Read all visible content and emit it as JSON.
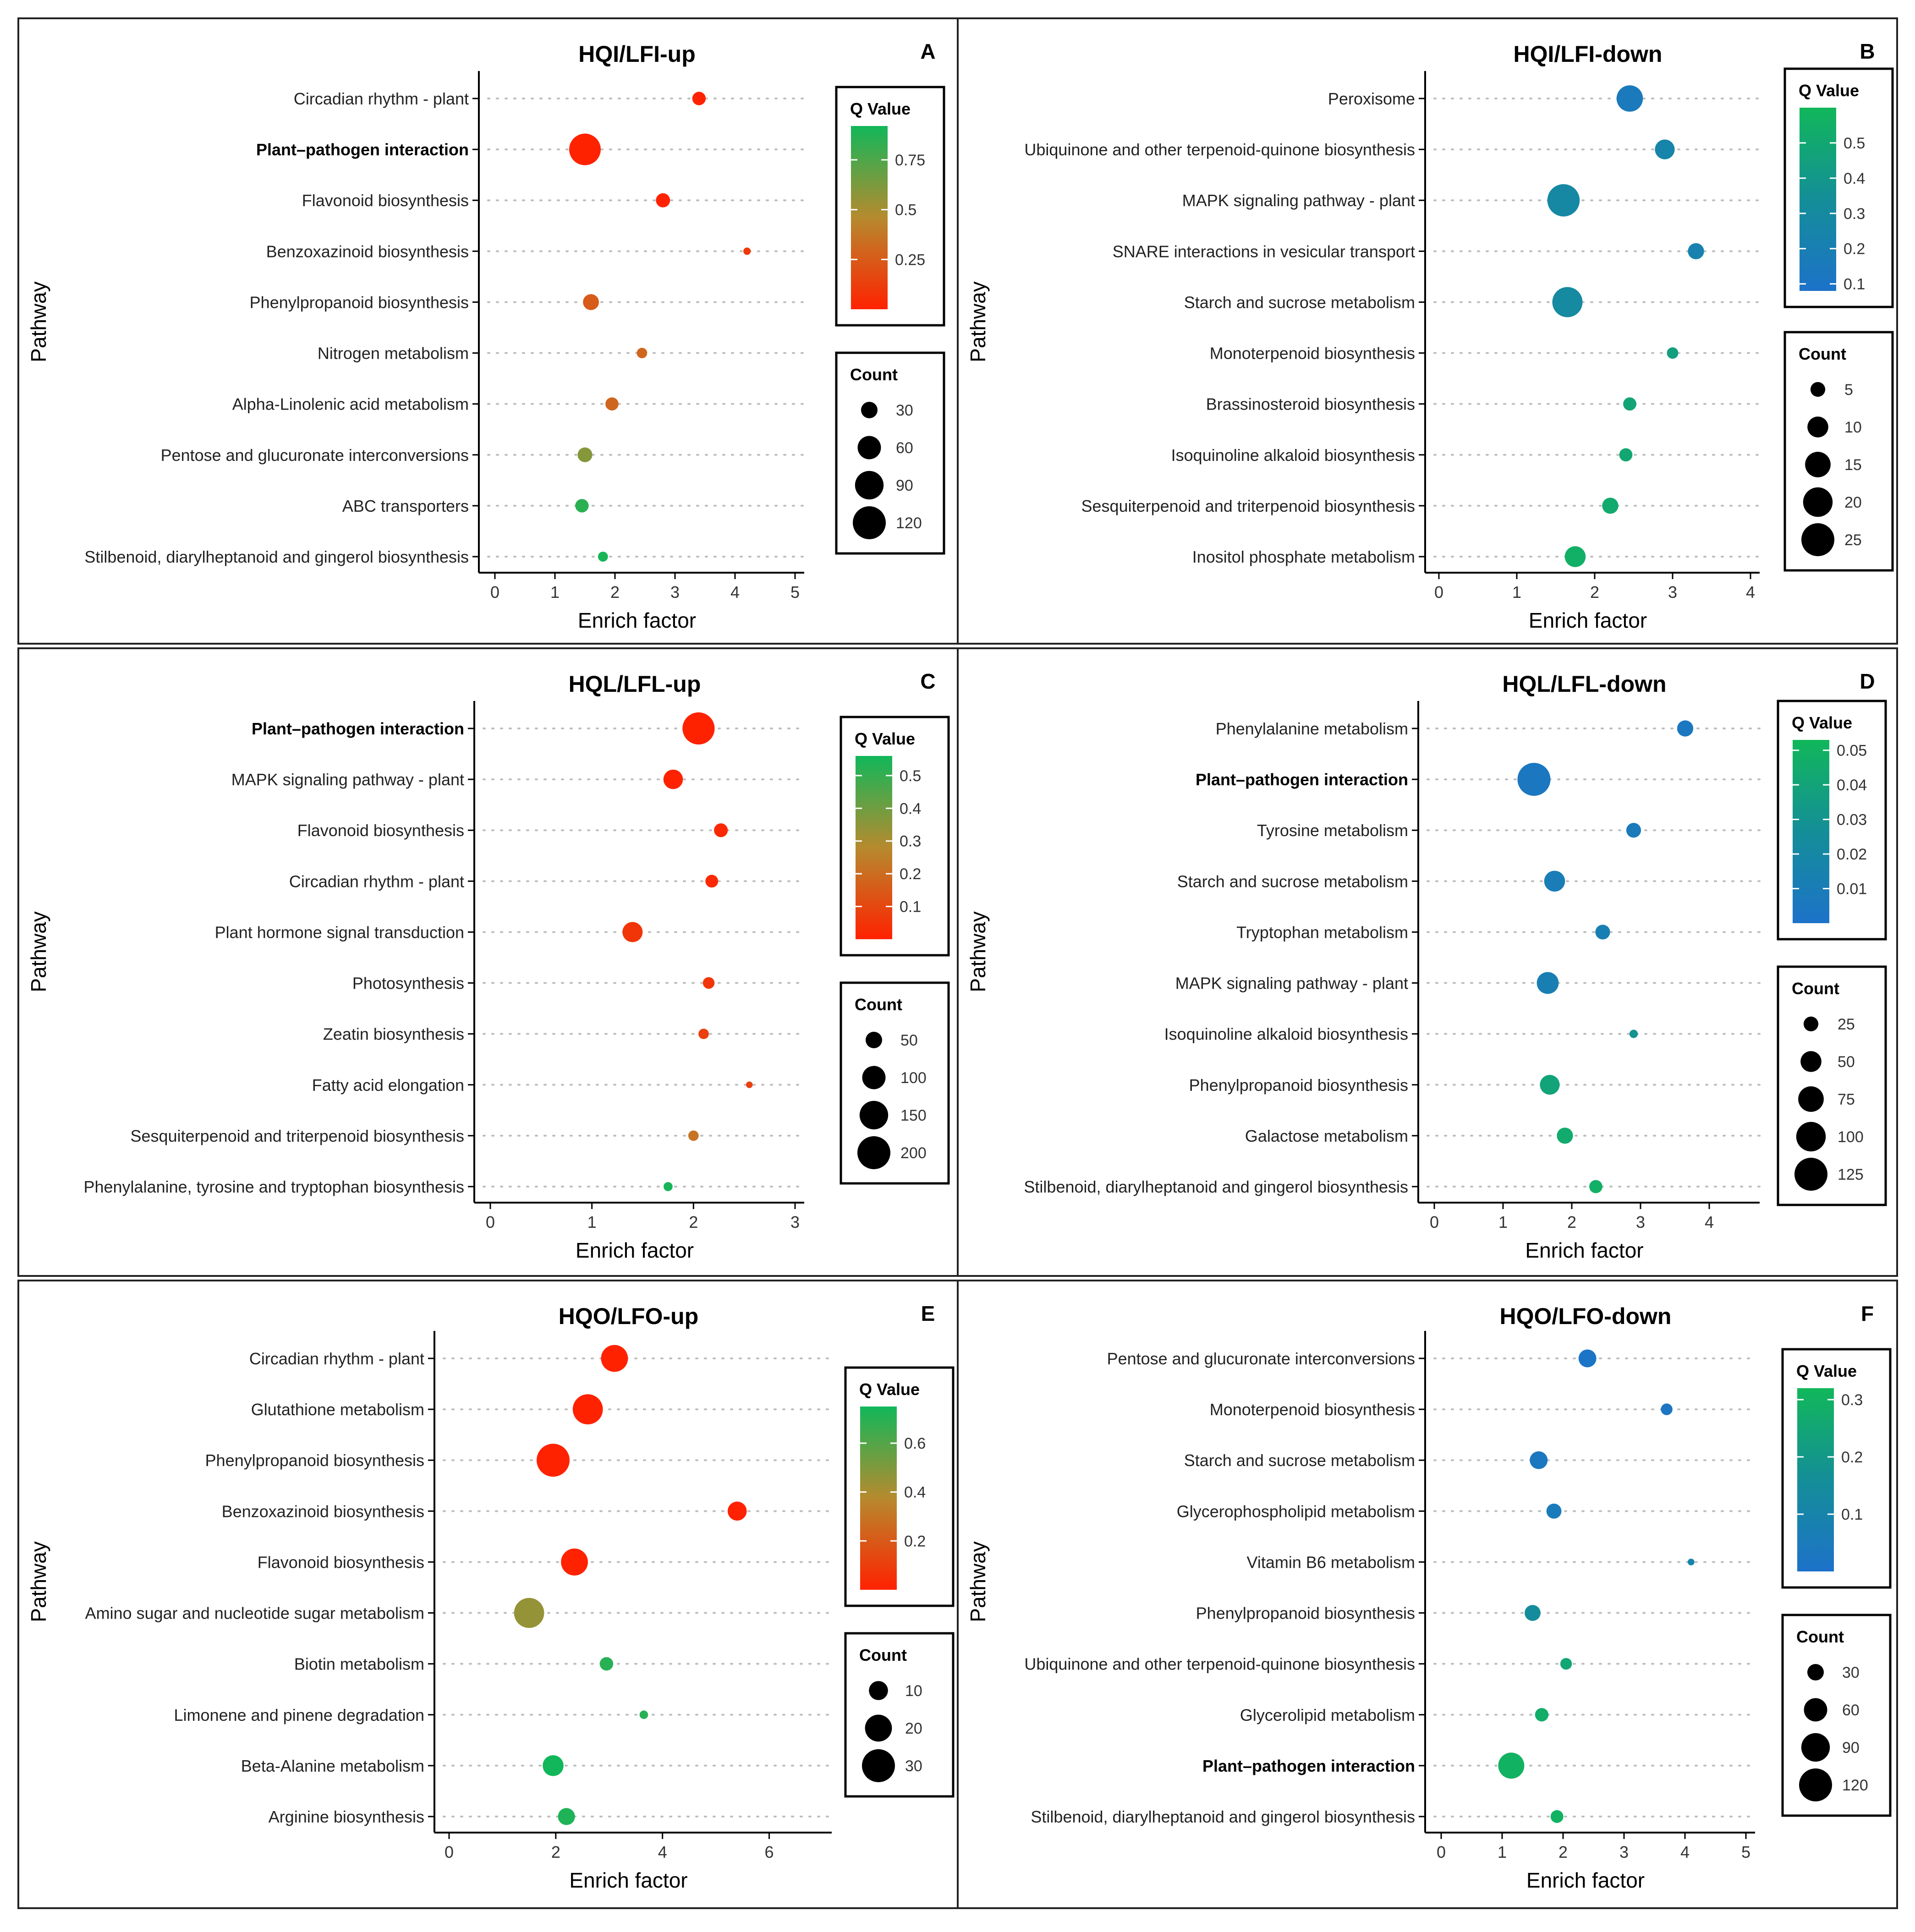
{
  "chart_data": [
    {
      "type": "scatter",
      "panel_letter": "A",
      "title": "HQI/LFI-up",
      "xlabel": "Enrich factor",
      "ylabel": "Pathway",
      "xlim": [
        0,
        5
      ],
      "xticks": [
        0,
        1,
        2,
        3,
        4,
        5
      ],
      "categories": [
        "Circadian rhythm - plant",
        "Plant–pathogen interaction",
        "Flavonoid biosynthesis",
        "Benzoxazinoid biosynthesis",
        "Phenylpropanoid biosynthesis",
        "Nitrogen metabolism",
        "Alpha-Linolenic acid metabolism",
        "Pentose and glucuronate interconversions",
        "ABC transporters",
        "Stilbenoid, diarylheptanoid and gingerol biosynthesis"
      ],
      "bold_categories": [
        "Plant–pathogen interaction"
      ],
      "x": [
        3.4,
        1.5,
        2.8,
        4.2,
        1.6,
        2.45,
        1.95,
        1.5,
        1.45,
        1.8
      ],
      "count": [
        20,
        110,
        22,
        6,
        28,
        12,
        19,
        24,
        20,
        11
      ],
      "qvalue": [
        0.0,
        0.0,
        0.0,
        0.1,
        0.25,
        0.3,
        0.3,
        0.6,
        0.85,
        0.9
      ],
      "qvalue_legend": {
        "title": "Q Value",
        "ticks": [
          0.75,
          0.5,
          0.25
        ],
        "min": 0.0,
        "max": 0.92,
        "color_low": "#ff2200",
        "color_mid": "#b68a2e",
        "color_high": "#11b75a"
      },
      "count_legend": {
        "title": "Count",
        "ticks": [
          30,
          60,
          90,
          120
        ],
        "max": 120
      }
    },
    {
      "type": "scatter",
      "panel_letter": "B",
      "title": "HQI/LFI-down",
      "xlabel": "Enrich factor",
      "ylabel": "Pathway",
      "xlim": [
        0,
        4
      ],
      "xticks": [
        0,
        1,
        2,
        3,
        4
      ],
      "categories": [
        "Peroxisome",
        "Ubiquinone and other terpenoid-quinone biosynthesis",
        "MAPK signaling pathway - plant",
        "SNARE interactions in vesicular transport",
        "Starch and sucrose metabolism",
        "Monoterpenoid biosynthesis",
        "Brassinosteroid biosynthesis",
        "Isoquinoline alkaloid biosynthesis",
        "Sesquiterpenoid and triterpenoid biosynthesis",
        "Inositol phosphate metabolism"
      ],
      "bold_categories": [],
      "x": [
        2.45,
        2.9,
        1.6,
        3.3,
        1.65,
        3.0,
        2.45,
        2.4,
        2.2,
        1.75
      ],
      "count": [
        16,
        9,
        24,
        6,
        21,
        3,
        4,
        4,
        6,
        10
      ],
      "qvalue": [
        0.15,
        0.25,
        0.28,
        0.22,
        0.3,
        0.45,
        0.48,
        0.5,
        0.52,
        0.55
      ],
      "qvalue_legend": {
        "title": "Q Value",
        "ticks": [
          0.5,
          0.4,
          0.3,
          0.2,
          0.1
        ],
        "min": 0.08,
        "max": 0.6,
        "color_low": "#1d72c9",
        "color_mid": "#148e98",
        "color_high": "#11b75a"
      },
      "count_legend": {
        "title": "Count",
        "ticks": [
          5,
          10,
          15,
          20,
          25
        ],
        "max": 25
      }
    },
    {
      "type": "scatter",
      "panel_letter": "C",
      "title": "HQL/LFL-up",
      "xlabel": "Enrich factor",
      "ylabel": "Pathway",
      "xlim": [
        0,
        3
      ],
      "xticks": [
        0,
        1,
        2,
        3
      ],
      "categories": [
        "Plant–pathogen interaction",
        "MAPK signaling pathway - plant",
        "Flavonoid biosynthesis",
        "Circadian rhythm - plant",
        "Plant hormone signal transduction",
        "Photosynthesis",
        "Zeatin biosynthesis",
        "Fatty acid elongation",
        "Sesquiterpenoid and triterpenoid biosynthesis",
        "Phenylalanine, tyrosine and tryptophan biosynthesis"
      ],
      "bold_categories": [
        "Plant–pathogen interaction"
      ],
      "x": [
        2.05,
        1.8,
        2.27,
        2.18,
        1.4,
        2.15,
        2.1,
        2.55,
        2.0,
        1.75
      ],
      "count": [
        190,
        70,
        35,
        30,
        75,
        25,
        20,
        8,
        20,
        15
      ],
      "qvalue": [
        0.0,
        0.0,
        0.02,
        0.02,
        0.05,
        0.05,
        0.08,
        0.08,
        0.22,
        0.55
      ],
      "qvalue_legend": {
        "title": "Q Value",
        "ticks": [
          0.5,
          0.4,
          0.3,
          0.2,
          0.1
        ],
        "min": 0.0,
        "max": 0.56,
        "color_low": "#ff2200",
        "color_mid": "#b68a2e",
        "color_high": "#11b75a"
      },
      "count_legend": {
        "title": "Count",
        "ticks": [
          50,
          100,
          150,
          200
        ],
        "max": 200
      }
    },
    {
      "type": "scatter",
      "panel_letter": "D",
      "title": "HQL/LFL-down",
      "xlabel": "Enrich factor",
      "ylabel": "Pathway",
      "xlim": [
        0,
        4.6
      ],
      "xticks": [
        0,
        1,
        2,
        3,
        4
      ],
      "categories": [
        "Phenylalanine metabolism",
        "Plant–pathogen interaction",
        "Tyrosine metabolism",
        "Starch and sucrose metabolism",
        "Tryptophan metabolism",
        "MAPK signaling pathway - plant",
        "Isoquinoline alkaloid biosynthesis",
        "Phenylpropanoid biosynthesis",
        "Galactose metabolism",
        "Stilbenoid, diarylheptanoid and gingerol biosynthesis"
      ],
      "bold_categories": [
        "Plant–pathogen interaction"
      ],
      "x": [
        3.65,
        1.45,
        2.9,
        1.75,
        2.45,
        1.65,
        2.9,
        1.68,
        1.9,
        2.35
      ],
      "count": [
        30,
        125,
        25,
        50,
        25,
        55,
        8,
        45,
        30,
        20
      ],
      "qvalue": [
        0.005,
        0.005,
        0.008,
        0.01,
        0.012,
        0.012,
        0.03,
        0.04,
        0.045,
        0.048
      ],
      "qvalue_legend": {
        "title": "Q Value",
        "ticks": [
          0.05,
          0.04,
          0.03,
          0.02,
          0.01
        ],
        "min": 0.0,
        "max": 0.053,
        "color_low": "#1d72c9",
        "color_mid": "#148e98",
        "color_high": "#11b75a"
      },
      "count_legend": {
        "title": "Count",
        "ticks": [
          25,
          50,
          75,
          100,
          125
        ],
        "max": 125
      }
    },
    {
      "type": "scatter",
      "panel_letter": "E",
      "title": "HQO/LFO-up",
      "xlabel": "Enrich factor",
      "ylabel": "Pathway",
      "xlim": [
        0,
        7
      ],
      "xticks": [
        0,
        2,
        4,
        6
      ],
      "categories": [
        "Circadian rhythm - plant",
        "Glutathione metabolism",
        "Phenylpropanoid biosynthesis",
        "Benzoxazinoid biosynthesis",
        "Flavonoid biosynthesis",
        "Amino sugar and nucleotide sugar metabolism",
        "Biotin metabolism",
        "Limonene and pinene degradation",
        "Beta-Alanine metabolism",
        "Arginine biosynthesis"
      ],
      "bold_categories": [],
      "x": [
        3.1,
        2.6,
        1.95,
        5.4,
        2.35,
        1.5,
        2.95,
        3.65,
        1.95,
        2.2
      ],
      "count": [
        20,
        25,
        30,
        10,
        20,
        25,
        5,
        2,
        12,
        8
      ],
      "qvalue": [
        0.0,
        0.0,
        0.0,
        0.0,
        0.0,
        0.45,
        0.7,
        0.7,
        0.75,
        0.72
      ],
      "qvalue_legend": {
        "title": "Q Value",
        "ticks": [
          0.6,
          0.4,
          0.2
        ],
        "min": 0.0,
        "max": 0.75,
        "color_low": "#ff2200",
        "color_mid": "#b68a2e",
        "color_high": "#11b75a"
      },
      "count_legend": {
        "title": "Count",
        "ticks": [
          10,
          20,
          30
        ],
        "max": 30
      }
    },
    {
      "type": "scatter",
      "panel_letter": "F",
      "title": "HQO/LFO-down",
      "xlabel": "Enrich factor",
      "ylabel": "Pathway",
      "xlim": [
        0,
        5
      ],
      "xticks": [
        0,
        1,
        2,
        3,
        4,
        5
      ],
      "categories": [
        "Pentose and glucuronate interconversions",
        "Monoterpenoid biosynthesis",
        "Starch and sucrose metabolism",
        "Glycerophospholipid metabolism",
        "Vitamin B6 metabolism",
        "Phenylpropanoid biosynthesis",
        "Ubiquinone and other terpenoid-quinone biosynthesis",
        "Glycerolipid metabolism",
        "Plant–pathogen interaction",
        "Stilbenoid, diarylheptanoid and gingerol biosynthesis"
      ],
      "bold_categories": [
        "Plant–pathogen interaction"
      ],
      "x": [
        2.4,
        3.7,
        1.6,
        1.85,
        4.1,
        1.5,
        2.05,
        1.65,
        1.15,
        1.9
      ],
      "count": [
        35,
        15,
        35,
        25,
        5,
        28,
        15,
        20,
        75,
        18
      ],
      "qvalue": [
        0.01,
        0.02,
        0.03,
        0.05,
        0.1,
        0.15,
        0.25,
        0.28,
        0.3,
        0.3
      ],
      "qvalue_legend": {
        "title": "Q Value",
        "ticks": [
          0.3,
          0.2,
          0.1
        ],
        "min": 0.0,
        "max": 0.32,
        "color_low": "#1d72c9",
        "color_mid": "#148e98",
        "color_high": "#11b75a"
      },
      "count_legend": {
        "title": "Count",
        "ticks": [
          30,
          60,
          90,
          120
        ],
        "max": 120
      }
    }
  ]
}
